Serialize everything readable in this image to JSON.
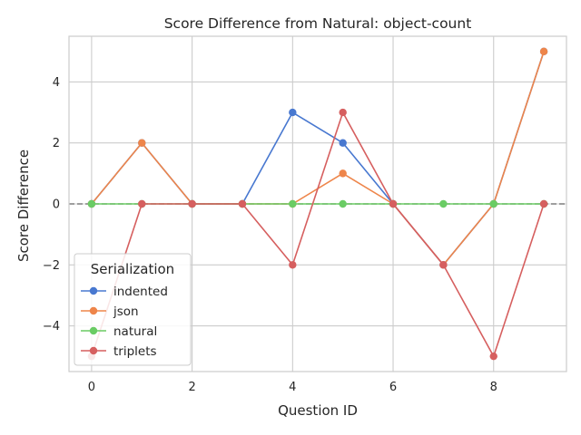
{
  "chart_data": {
    "type": "line",
    "title": "Score Difference from Natural: object-count",
    "xlabel": "Question ID",
    "ylabel": "Score Difference",
    "xlim": [
      -0.45,
      9.45
    ],
    "ylim": [
      -5.5,
      5.5
    ],
    "xticks": [
      0,
      2,
      4,
      6,
      8
    ],
    "yticks": [
      -4,
      -2,
      0,
      2,
      4
    ],
    "grid": true,
    "reference_line": {
      "y": 0,
      "style": "dashed",
      "color": "#7f7f7f"
    },
    "legend": {
      "title": "Serialization",
      "placement": "lower-left"
    },
    "x": [
      0,
      1,
      2,
      3,
      4,
      5,
      6,
      7,
      8,
      9
    ],
    "series": [
      {
        "name": "indented",
        "color": "#4878d0",
        "values": [
          0,
          2,
          0,
          0,
          3,
          2,
          0,
          -2,
          0,
          5
        ]
      },
      {
        "name": "json",
        "color": "#ee854a",
        "values": [
          0,
          2,
          0,
          0,
          0,
          1,
          0,
          -2,
          0,
          5
        ]
      },
      {
        "name": "natural",
        "color": "#6acc64",
        "values": [
          0,
          0,
          0,
          0,
          0,
          0,
          0,
          0,
          0,
          0
        ]
      },
      {
        "name": "triplets",
        "color": "#d65f5f",
        "values": [
          -5,
          0,
          0,
          0,
          -2,
          3,
          0,
          -2,
          -5,
          0
        ]
      }
    ]
  }
}
